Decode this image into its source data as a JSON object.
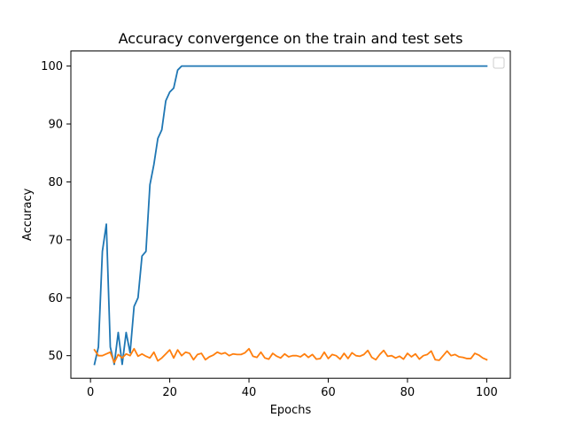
{
  "chart_data": {
    "type": "line",
    "title": "Accuracy convergence on the train and test sets",
    "xlabel": "Epochs",
    "ylabel": "Accuracy",
    "xlim": [
      -4.95,
      105.95
    ],
    "ylim": [
      46.1,
      102.6
    ],
    "xticks": [
      0,
      20,
      40,
      60,
      80,
      100
    ],
    "yticks": [
      50,
      60,
      70,
      80,
      90,
      100
    ],
    "grid": false,
    "legend": "upper-right, empty",
    "x": [
      1,
      2,
      3,
      4,
      5,
      6,
      7,
      8,
      9,
      10,
      11,
      12,
      13,
      14,
      15,
      16,
      17,
      18,
      19,
      20,
      21,
      22,
      23,
      24,
      25,
      26,
      27,
      28,
      29,
      30,
      31,
      32,
      33,
      34,
      35,
      36,
      37,
      38,
      39,
      40,
      41,
      42,
      43,
      44,
      45,
      46,
      47,
      48,
      49,
      50,
      51,
      52,
      53,
      54,
      55,
      56,
      57,
      58,
      59,
      60,
      61,
      62,
      63,
      64,
      65,
      66,
      67,
      68,
      69,
      70,
      71,
      72,
      73,
      74,
      75,
      76,
      77,
      78,
      79,
      80,
      81,
      82,
      83,
      84,
      85,
      86,
      87,
      88,
      89,
      90,
      91,
      92,
      93,
      94,
      95,
      96,
      97,
      98,
      99,
      100
    ],
    "series": [
      {
        "color": "#1f77b4",
        "values": [
          48.5,
          51.5,
          68.0,
          72.7,
          51.5,
          48.5,
          54.0,
          48.5,
          54.0,
          50.5,
          58.5,
          60.0,
          67.2,
          68.0,
          79.5,
          83.0,
          87.5,
          89.0,
          94.0,
          95.5,
          96.2,
          99.3,
          100,
          100,
          100,
          100,
          100,
          100,
          100,
          100,
          100,
          100,
          100,
          100,
          100,
          100,
          100,
          100,
          100,
          100,
          100,
          100,
          100,
          100,
          100,
          100,
          100,
          100,
          100,
          100,
          100,
          100,
          100,
          100,
          100,
          100,
          100,
          100,
          100,
          100,
          100,
          100,
          100,
          100,
          100,
          100,
          100,
          100,
          100,
          100,
          100,
          100,
          100,
          100,
          100,
          100,
          100,
          100,
          100,
          100,
          100,
          100,
          100,
          100,
          100,
          100,
          100,
          100,
          100,
          100,
          100,
          100,
          100,
          100,
          100,
          100,
          100,
          100,
          100,
          100
        ]
      },
      {
        "color": "#ff7f0e",
        "values": [
          51.0,
          50.0,
          50.0,
          50.3,
          50.6,
          48.8,
          50.2,
          49.6,
          50.3,
          50.0,
          51.2,
          49.9,
          50.3,
          49.9,
          49.6,
          50.6,
          49.1,
          49.6,
          50.3,
          51.0,
          49.6,
          51.0,
          50.0,
          50.6,
          50.4,
          49.3,
          50.2,
          50.4,
          49.3,
          49.8,
          50.1,
          50.6,
          50.3,
          50.5,
          50.0,
          50.3,
          50.2,
          50.2,
          50.5,
          51.2,
          49.9,
          49.7,
          50.6,
          49.6,
          49.4,
          50.4,
          49.9,
          49.6,
          50.3,
          49.8,
          50.0,
          50.0,
          49.8,
          50.3,
          49.7,
          50.2,
          49.4,
          49.5,
          50.6,
          49.5,
          50.2,
          50.0,
          49.4,
          50.4,
          49.5,
          50.5,
          50.0,
          49.9,
          50.2,
          50.9,
          49.7,
          49.3,
          50.2,
          50.9,
          49.9,
          50.0,
          49.6,
          49.9,
          49.4,
          50.4,
          49.8,
          50.3,
          49.4,
          50.0,
          50.2,
          50.8,
          49.3,
          49.2,
          50.0,
          50.8,
          50.0,
          50.2,
          49.8,
          49.7,
          49.5,
          49.5,
          50.4,
          50.1,
          49.6,
          49.3
        ]
      }
    ]
  }
}
